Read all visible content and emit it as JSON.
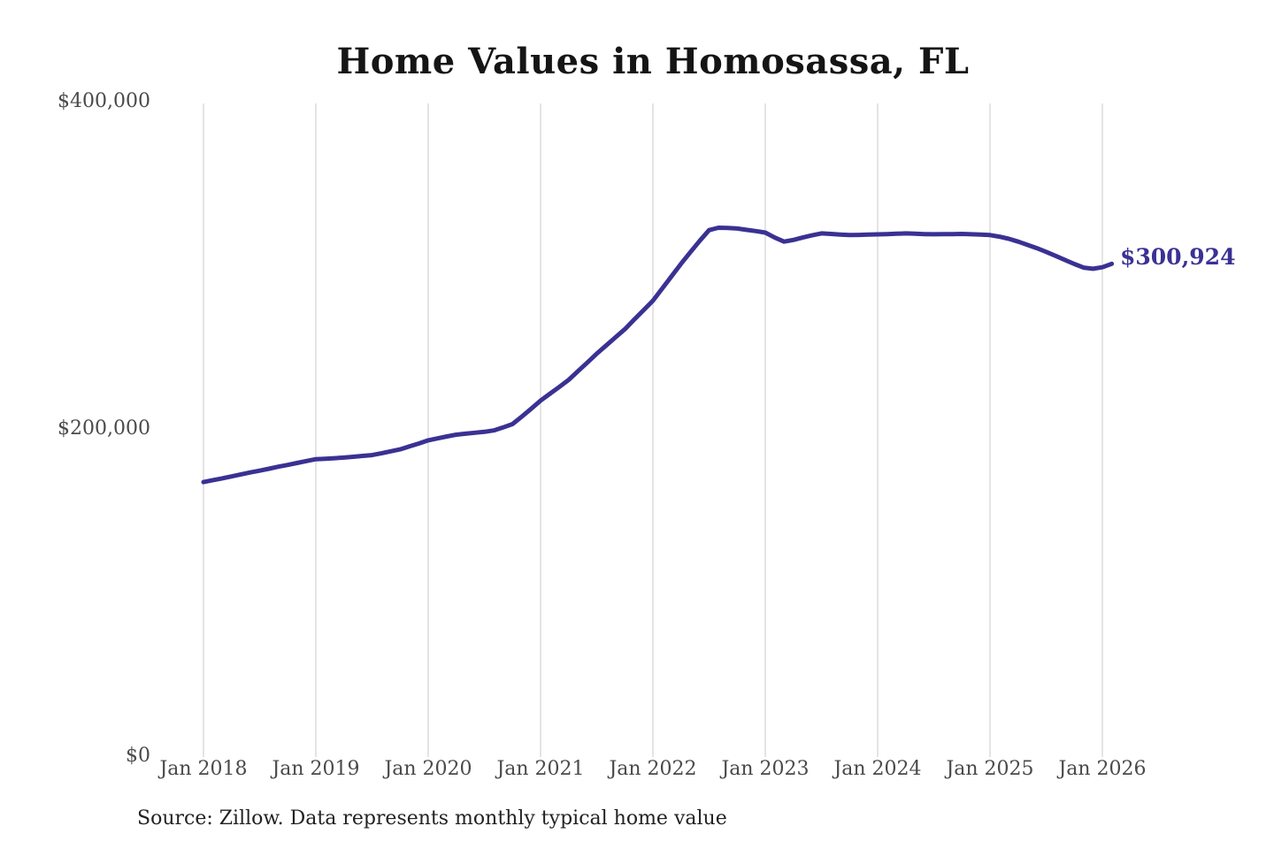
{
  "chart_data": {
    "type": "line",
    "title": "Home Values in Homosassa, FL",
    "ylabel": "",
    "xlabel": "",
    "ylim": [
      0,
      400000
    ],
    "grid": "vertical-only",
    "legend": "none",
    "line_color": "#3a3193",
    "grid_color": "#c9c9c9",
    "axis_text_color": "#4a4a4a",
    "x_tick_labels": [
      "Jan 2018",
      "Jan 2019",
      "Jan 2020",
      "Jan 2021",
      "Jan 2022",
      "Jan 2023",
      "Jan 2024",
      "Jan 2025",
      "Jan 2026"
    ],
    "y_ticks": [
      {
        "label": "$0",
        "value": 0
      },
      {
        "label": "$200,000",
        "value": 200000
      },
      {
        "label": "$400,000",
        "value": 400000
      }
    ],
    "end_annotation": {
      "text": "$300,924",
      "value": 300924
    },
    "source": "Source: Zillow. Data represents monthly typical home value",
    "series": [
      {
        "name": "Monthly typical home value",
        "x": [
          "2018-01",
          "2018-02",
          "2018-03",
          "2018-04",
          "2018-05",
          "2018-06",
          "2018-07",
          "2018-08",
          "2018-09",
          "2018-10",
          "2018-11",
          "2018-12",
          "2019-01",
          "2019-02",
          "2019-03",
          "2019-04",
          "2019-05",
          "2019-06",
          "2019-07",
          "2019-08",
          "2019-09",
          "2019-10",
          "2019-11",
          "2019-12",
          "2020-01",
          "2020-02",
          "2020-03",
          "2020-04",
          "2020-05",
          "2020-06",
          "2020-07",
          "2020-08",
          "2020-09",
          "2020-10",
          "2020-11",
          "2020-12",
          "2021-01",
          "2021-02",
          "2021-03",
          "2021-04",
          "2021-05",
          "2021-06",
          "2021-07",
          "2021-08",
          "2021-09",
          "2021-10",
          "2021-11",
          "2021-12",
          "2022-01",
          "2022-02",
          "2022-03",
          "2022-04",
          "2022-05",
          "2022-06",
          "2022-07",
          "2022-08",
          "2022-09",
          "2022-10",
          "2022-11",
          "2022-12",
          "2023-01",
          "2023-02",
          "2023-03",
          "2023-04",
          "2023-05",
          "2023-06",
          "2023-07",
          "2023-08",
          "2023-09",
          "2023-10",
          "2023-11",
          "2023-12",
          "2024-01",
          "2024-02",
          "2024-03",
          "2024-04",
          "2024-05",
          "2024-06",
          "2024-07",
          "2024-08",
          "2024-09",
          "2024-10",
          "2024-11",
          "2024-12",
          "2025-01",
          "2025-02",
          "2025-03",
          "2025-04",
          "2025-05",
          "2025-06",
          "2025-07",
          "2025-08",
          "2025-09",
          "2025-10",
          "2025-11",
          "2025-12",
          "2026-01",
          "2026-02"
        ],
        "values": [
          167500,
          168700,
          169800,
          171000,
          172200,
          173400,
          174500,
          175700,
          176900,
          178000,
          179200,
          180400,
          181500,
          181800,
          182100,
          182500,
          183000,
          183500,
          184000,
          185100,
          186300,
          187500,
          189300,
          191100,
          193000,
          194200,
          195400,
          196500,
          197100,
          197700,
          198200,
          199100,
          200900,
          203000,
          207500,
          212300,
          217300,
          221500,
          225700,
          230000,
          235300,
          240600,
          246000,
          251000,
          256000,
          261000,
          266800,
          272600,
          278400,
          285900,
          293400,
          301000,
          308000,
          315000,
          321500,
          323000,
          322800,
          322500,
          321700,
          320900,
          320000,
          317000,
          314500,
          315500,
          317000,
          318300,
          319500,
          319200,
          318800,
          318500,
          318600,
          318800,
          318900,
          319100,
          319300,
          319500,
          319300,
          319100,
          319000,
          319100,
          319100,
          319200,
          319000,
          318800,
          318500,
          317500,
          316200,
          314500,
          312500,
          310500,
          308200,
          305800,
          303300,
          300800,
          298600,
          297900,
          298800,
          300924
        ]
      }
    ]
  }
}
